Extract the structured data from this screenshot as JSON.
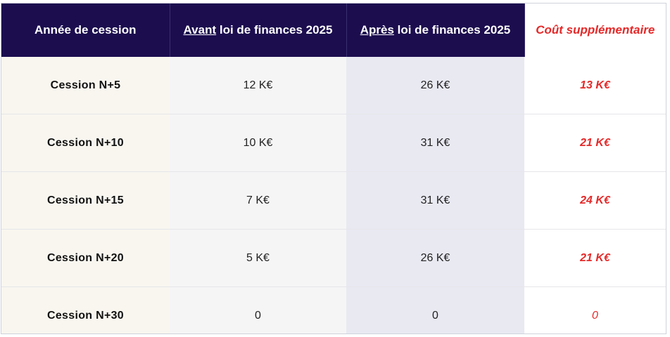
{
  "colors": {
    "header_bg": "#1c0d4f",
    "accent_red": "#e52929"
  },
  "header": {
    "col1": "Année de cession",
    "col2_prefix": "Avant",
    "col2_rest": " loi de finances 2025",
    "col3_prefix": "Après",
    "col3_rest": " loi de finances 2025",
    "col4": "Coût supplémentaire"
  },
  "rows": [
    {
      "year": "Cession N+5",
      "before": "12 K€",
      "after": "26 K€",
      "cost": "13 K€"
    },
    {
      "year": "Cession N+10",
      "before": "10 K€",
      "after": "31 K€",
      "cost": "21 K€"
    },
    {
      "year": "Cession N+15",
      "before": "7 K€",
      "after": "31 K€",
      "cost": "24 K€"
    },
    {
      "year": "Cession N+20",
      "before": "5 K€",
      "after": "26 K€",
      "cost": "21 K€"
    },
    {
      "year": "Cession N+30",
      "before": "0",
      "after": "0",
      "cost": "0"
    }
  ]
}
